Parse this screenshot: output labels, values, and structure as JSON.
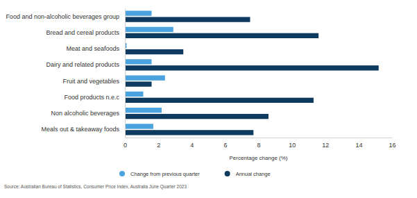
{
  "chart_data": {
    "type": "bar",
    "orientation": "horizontal",
    "categories": [
      "Food and non-alcoholic beverages group",
      "Bread and cereal products",
      "Meat and seafoods",
      "Dairy and related products",
      "Fruit and vegetables",
      "Food products n.e.c",
      "Non alcoholic beverages",
      "Meals out & takeaway foods"
    ],
    "series": [
      {
        "name": "Change from previous quarter",
        "color": "#4aa3de",
        "values": [
          1.6,
          2.9,
          0.1,
          1.6,
          2.4,
          1.1,
          2.2,
          1.7
        ]
      },
      {
        "name": "Annual change",
        "color": "#0d3a5e",
        "values": [
          7.5,
          11.6,
          3.5,
          15.2,
          1.6,
          11.3,
          8.6,
          7.7
        ]
      }
    ],
    "xlabel": "Percentage change (%)",
    "xlim": [
      0,
      16
    ],
    "xticks": [
      0,
      2,
      4,
      6,
      8,
      10,
      12,
      14,
      16
    ],
    "grid": false,
    "legend": "bottom",
    "source": "Source: Australian Bureau of Statistics, Consumer Price Index, Australia June Quarter 2023"
  }
}
